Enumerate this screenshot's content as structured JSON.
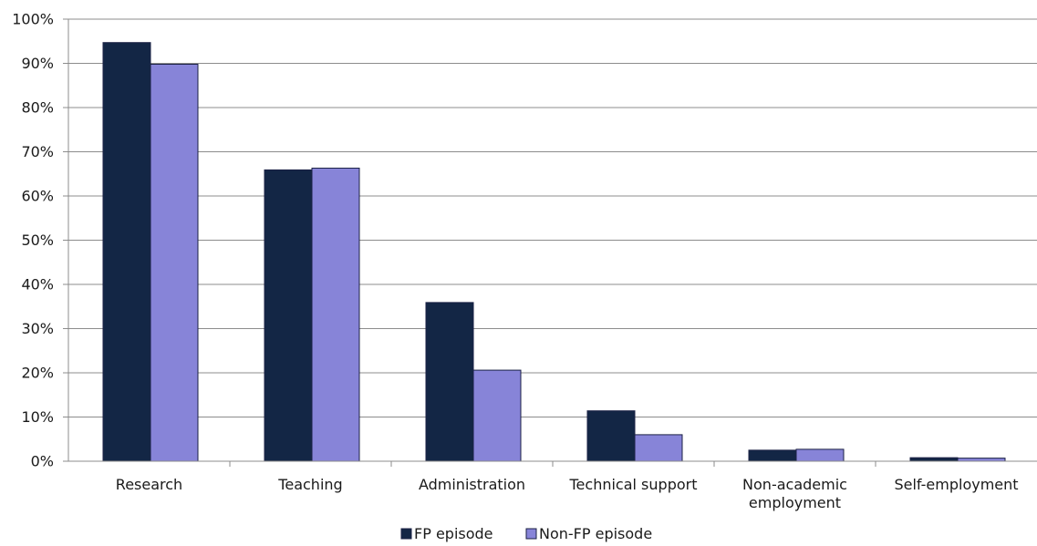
{
  "chart_data": {
    "type": "bar",
    "title": "",
    "xlabel": "",
    "ylabel": "",
    "ylim": [
      0,
      100
    ],
    "yticks": [
      "0%",
      "10%",
      "20%",
      "30%",
      "40%",
      "50%",
      "60%",
      "70%",
      "80%",
      "90%",
      "100%"
    ],
    "grid": true,
    "legend_position": "bottom",
    "categories": [
      [
        "Research"
      ],
      [
        "Teaching"
      ],
      [
        "Administration"
      ],
      [
        "Technical support"
      ],
      [
        "Non-academic",
        "employment"
      ],
      [
        "Self-employment"
      ]
    ],
    "series": [
      {
        "name": "FP episode",
        "color": "#132645",
        "values": [
          94.7,
          65.9,
          35.9,
          11.4,
          2.5,
          0.8
        ]
      },
      {
        "name": "Non-FP episode",
        "color": "#8784d8",
        "values": [
          89.8,
          66.3,
          20.6,
          6.0,
          2.7,
          0.7
        ]
      }
    ]
  }
}
